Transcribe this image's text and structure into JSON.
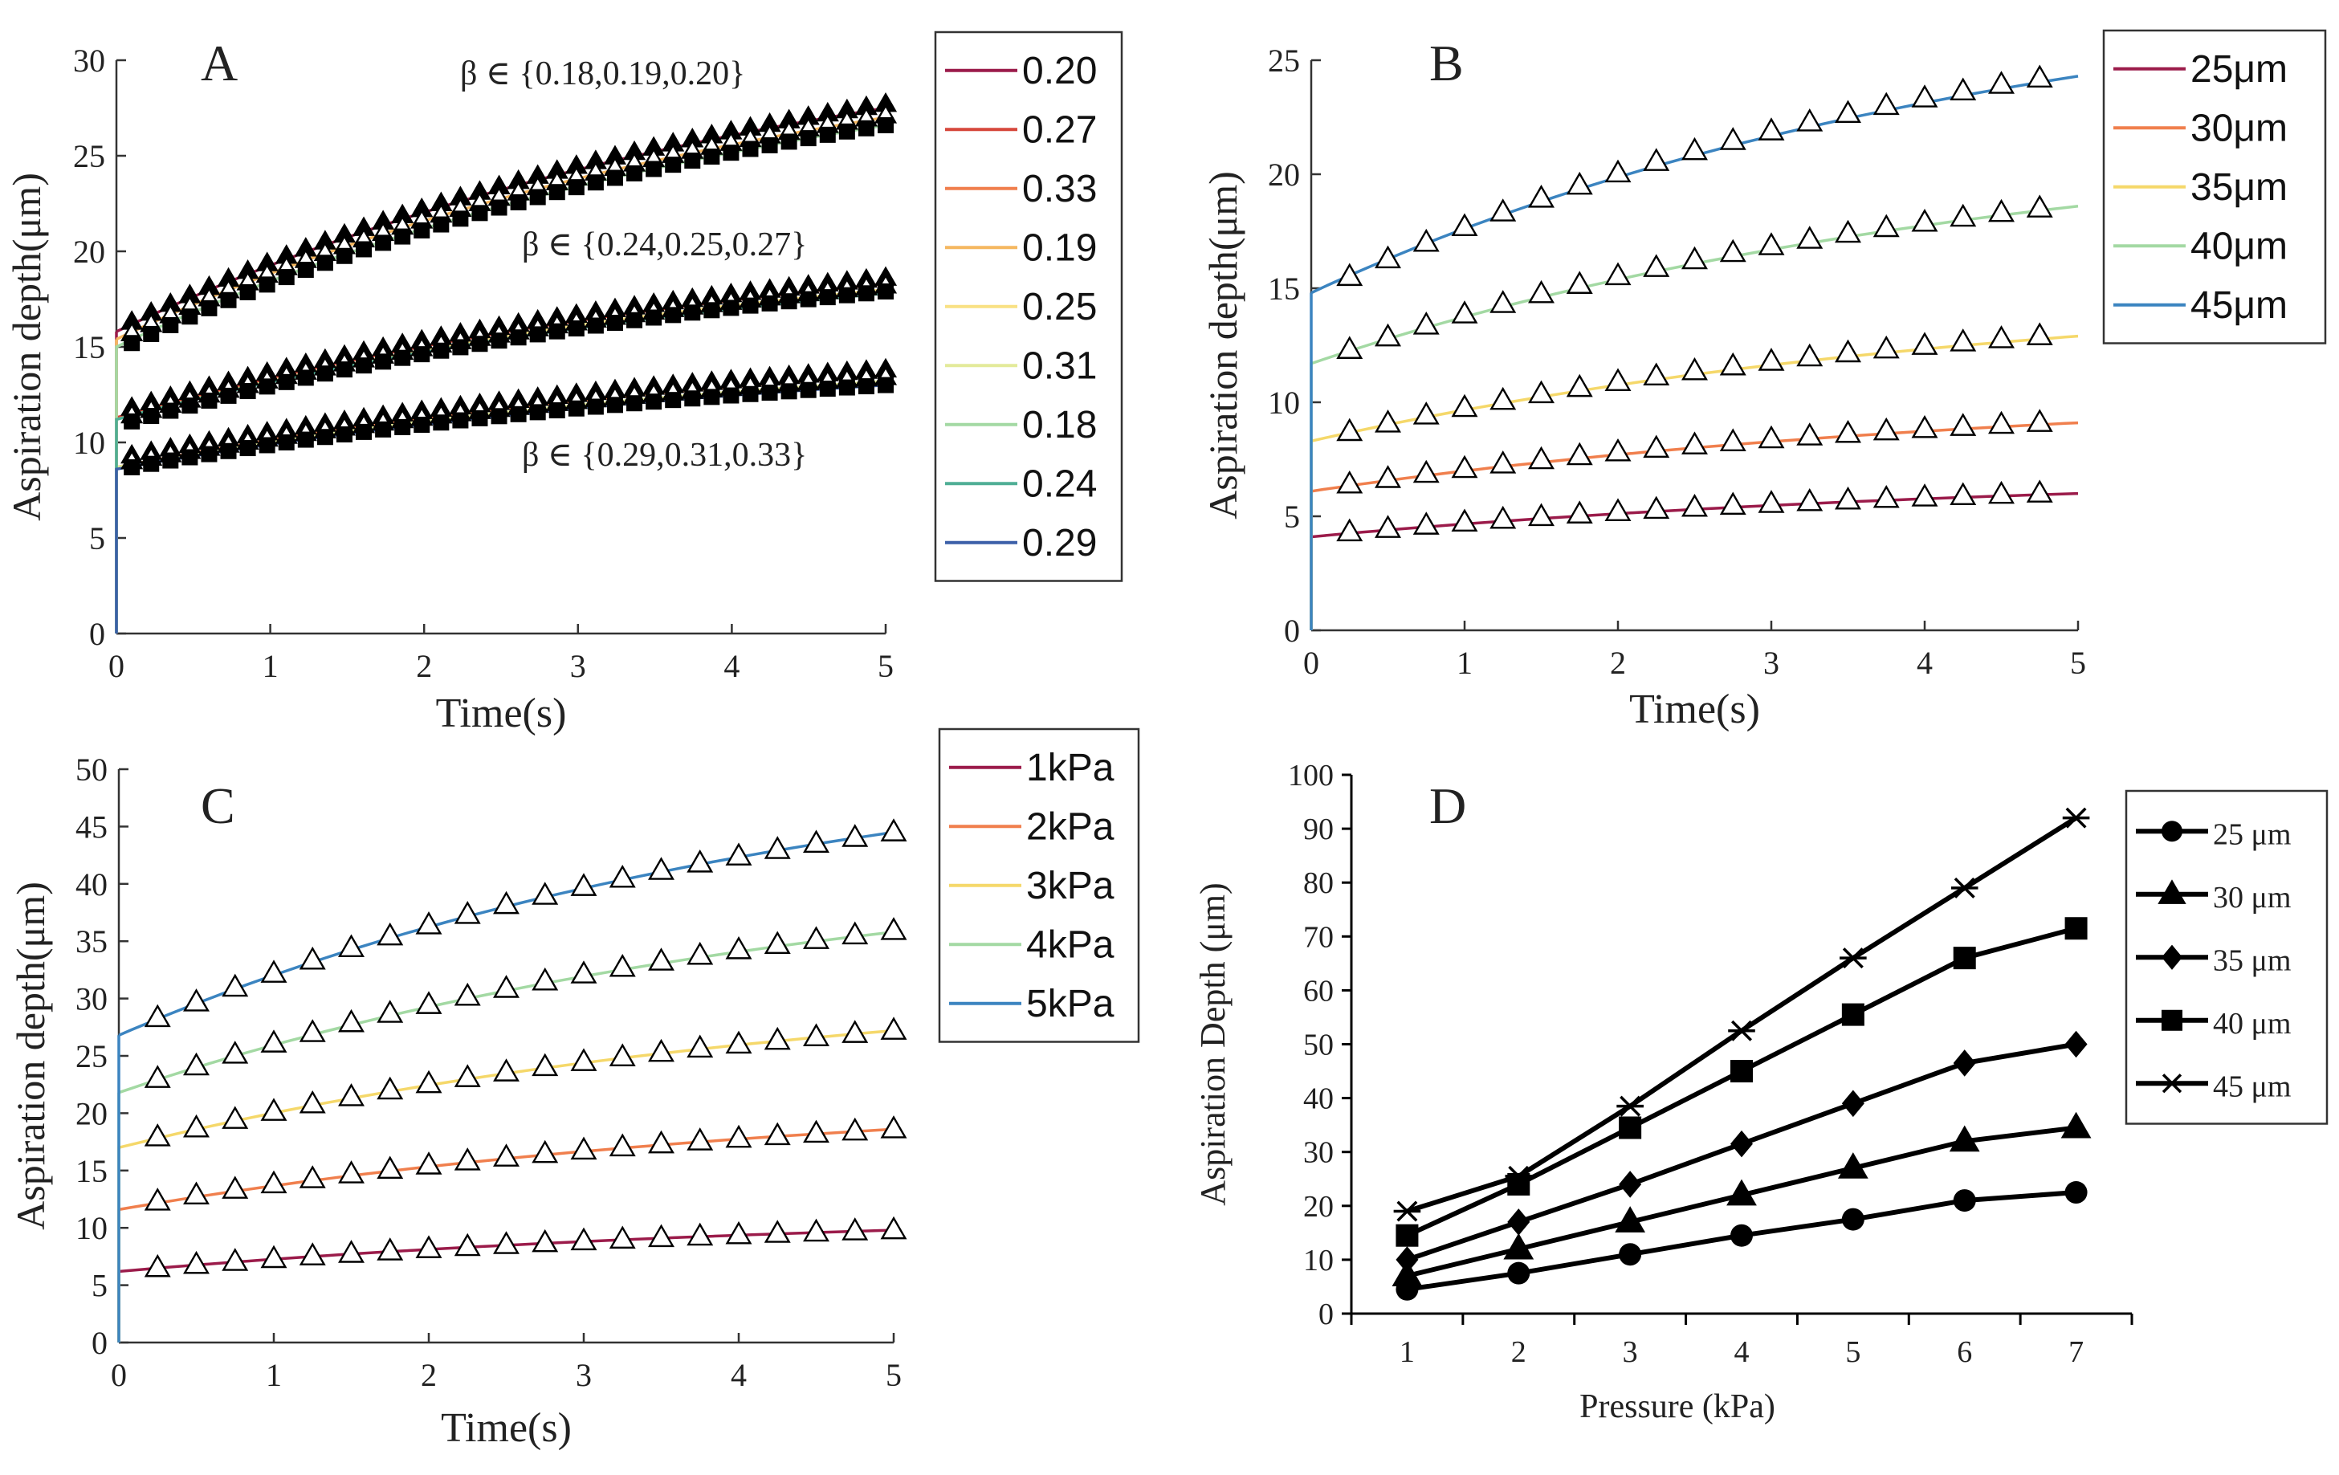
{
  "chart_data": [
    {
      "panel": "A",
      "type": "line",
      "xlabel": "Time(s)",
      "ylabel": "Aspiration depth(μm)",
      "xlim": [
        0,
        5
      ],
      "ylim": [
        0,
        30
      ],
      "xticks": [
        "0",
        "1",
        "2",
        "3",
        "4",
        "5"
      ],
      "yticks": [
        "0",
        "5",
        "10",
        "15",
        "20",
        "25",
        "30"
      ],
      "legend_position": "outside-right",
      "annotations": [
        {
          "text": "β ∈ {0.18,0.19,0.20}",
          "at": [
            3.4,
            28.5
          ]
        },
        {
          "text": "β ∈ {0.24,0.25,0.27}",
          "at": [
            3.9,
            20.0
          ]
        },
        {
          "text": "β ∈ {0.29,0.31,0.33}",
          "at": [
            3.9,
            9.2
          ]
        }
      ],
      "series": [
        {
          "name": "0.20",
          "color": "#9b1b4a",
          "start": 15.8,
          "end": 27.5
        },
        {
          "name": "0.27",
          "color": "#d6473b",
          "start": 11.3,
          "end": 18.3
        },
        {
          "name": "0.33",
          "color": "#f07f4d",
          "start": 8.7,
          "end": 13.5
        },
        {
          "name": "0.19",
          "color": "#f5b760",
          "start": 15.4,
          "end": 27.0
        },
        {
          "name": "0.25",
          "color": "#f9e184",
          "start": 11.2,
          "end": 18.0
        },
        {
          "name": "0.31",
          "color": "#e3ea9a",
          "start": 8.7,
          "end": 13.2
        },
        {
          "name": "0.18",
          "color": "#a3d9a3",
          "start": 15.0,
          "end": 26.6
        },
        {
          "name": "0.24",
          "color": "#4fae95",
          "start": 11.2,
          "end": 17.8
        },
        {
          "name": "0.29",
          "color": "#3b5fa8",
          "start": 8.6,
          "end": 13.0
        }
      ],
      "marker_series": [
        {
          "marker": "filled-triangle",
          "x_start": 0.1,
          "x_end": 5,
          "count": 40,
          "start": 16.3,
          "end": 27.7
        },
        {
          "marker": "open-triangle",
          "x_start": 0.1,
          "x_end": 5,
          "count": 40,
          "start": 15.7,
          "end": 27.1
        },
        {
          "marker": "filled-square",
          "x_start": 0.1,
          "x_end": 5,
          "count": 40,
          "start": 15.2,
          "end": 26.6
        },
        {
          "marker": "filled-triangle",
          "x_start": 0.1,
          "x_end": 5,
          "count": 40,
          "start": 11.8,
          "end": 18.6
        },
        {
          "marker": "open-triangle",
          "x_start": 0.1,
          "x_end": 5,
          "count": 40,
          "start": 11.4,
          "end": 18.2
        },
        {
          "marker": "filled-square",
          "x_start": 0.1,
          "x_end": 5,
          "count": 40,
          "start": 11.1,
          "end": 17.9
        },
        {
          "marker": "filled-triangle",
          "x_start": 0.1,
          "x_end": 5,
          "count": 40,
          "start": 9.3,
          "end": 13.8
        },
        {
          "marker": "open-triangle",
          "x_start": 0.1,
          "x_end": 5,
          "count": 40,
          "start": 9.0,
          "end": 13.4
        },
        {
          "marker": "filled-square",
          "x_start": 0.1,
          "x_end": 5,
          "count": 40,
          "start": 8.7,
          "end": 13.0
        }
      ]
    },
    {
      "panel": "B",
      "type": "line",
      "xlabel": "Time(s)",
      "ylabel": "Aspiration depth(μm)",
      "xlim": [
        0,
        5
      ],
      "ylim": [
        0,
        25
      ],
      "xticks": [
        "0",
        "1",
        "2",
        "3",
        "4",
        "5"
      ],
      "yticks": [
        "0",
        "5",
        "10",
        "15",
        "20",
        "25"
      ],
      "legend_position": "outside-right",
      "series": [
        {
          "name": "25μm",
          "color": "#9b1b4a",
          "start": 4.1,
          "end": 6.0
        },
        {
          "name": "30μm",
          "color": "#f07f4d",
          "start": 6.1,
          "end": 9.1
        },
        {
          "name": "35μm",
          "color": "#f5d86a",
          "start": 8.3,
          "end": 12.9
        },
        {
          "name": "40μm",
          "color": "#a3d9a3",
          "start": 11.7,
          "end": 18.6
        },
        {
          "name": "45μm",
          "color": "#3b84c0",
          "start": 14.8,
          "end": 24.3
        }
      ],
      "marker_series": [
        {
          "marker": "open-triangle",
          "x_start": 0.25,
          "x_end": 4.75,
          "count": 19,
          "start": 4.3,
          "end": 6.0
        },
        {
          "marker": "open-triangle",
          "x_start": 0.25,
          "x_end": 4.75,
          "count": 19,
          "start": 6.4,
          "end": 9.1
        },
        {
          "marker": "open-triangle",
          "x_start": 0.25,
          "x_end": 4.75,
          "count": 19,
          "start": 8.7,
          "end": 12.9
        },
        {
          "marker": "open-triangle",
          "x_start": 0.25,
          "x_end": 4.75,
          "count": 19,
          "start": 12.3,
          "end": 18.5
        },
        {
          "marker": "open-triangle",
          "x_start": 0.25,
          "x_end": 4.75,
          "count": 19,
          "start": 15.5,
          "end": 24.2
        }
      ]
    },
    {
      "panel": "C",
      "type": "line",
      "xlabel": "Time(s)",
      "ylabel": "Aspiration depth(μm)",
      "xlim": [
        0,
        5
      ],
      "ylim": [
        0,
        50
      ],
      "xticks": [
        "0",
        "1",
        "2",
        "3",
        "4",
        "5"
      ],
      "yticks": [
        "0",
        "5",
        "10",
        "15",
        "20",
        "25",
        "30",
        "35",
        "40",
        "45",
        "50"
      ],
      "legend_position": "outside-right",
      "series": [
        {
          "name": "1kPa",
          "color": "#9b1b4a",
          "start": 6.2,
          "end": 9.8
        },
        {
          "name": "2kPa",
          "color": "#f07f4d",
          "start": 11.6,
          "end": 18.6
        },
        {
          "name": "3kPa",
          "color": "#f5d86a",
          "start": 17.0,
          "end": 27.2
        },
        {
          "name": "4kPa",
          "color": "#a3d9a3",
          "start": 21.8,
          "end": 35.8
        },
        {
          "name": "5kPa",
          "color": "#3b84c0",
          "start": 26.8,
          "end": 44.5
        }
      ],
      "marker_series": [
        {
          "marker": "open-triangle",
          "x_start": 0.25,
          "x_end": 5,
          "count": 20,
          "start": 6.5,
          "end": 9.8
        },
        {
          "marker": "open-triangle",
          "x_start": 0.25,
          "x_end": 5,
          "count": 20,
          "start": 12.3,
          "end": 18.6
        },
        {
          "marker": "open-triangle",
          "x_start": 0.25,
          "x_end": 5,
          "count": 20,
          "start": 17.9,
          "end": 27.2
        },
        {
          "marker": "open-triangle",
          "x_start": 0.25,
          "x_end": 5,
          "count": 20,
          "start": 23.0,
          "end": 35.9
        },
        {
          "marker": "open-triangle",
          "x_start": 0.25,
          "x_end": 5,
          "count": 20,
          "start": 28.3,
          "end": 44.5
        }
      ]
    },
    {
      "panel": "D",
      "type": "line",
      "xlabel": "Pressure (kPa)",
      "ylabel": "Aspiration Depth (μm)",
      "ylim": [
        0,
        100
      ],
      "categories": [
        "1",
        "2",
        "3",
        "4",
        "5",
        "6",
        "7"
      ],
      "yticks": [
        "0",
        "10",
        "20",
        "30",
        "40",
        "50",
        "60",
        "70",
        "80",
        "90",
        "100"
      ],
      "legend_position": "outside-right",
      "series": [
        {
          "name": "25 μm",
          "marker": "circle",
          "values": [
            4.5,
            7.5,
            11,
            14.5,
            17.5,
            21,
            22.5
          ]
        },
        {
          "name": "30 μm",
          "marker": "triangle",
          "values": [
            7,
            12,
            17,
            22,
            27,
            32,
            34.5
          ]
        },
        {
          "name": "35 μm",
          "marker": "diamond",
          "values": [
            10,
            17,
            24,
            31.5,
            39,
            46.5,
            50
          ]
        },
        {
          "name": "40 μm",
          "marker": "square",
          "values": [
            14.5,
            24,
            34.5,
            45,
            55.5,
            66,
            71.5
          ]
        },
        {
          "name": "45 μm",
          "marker": "asterisk",
          "values": [
            19,
            25.5,
            38.5,
            52.5,
            66,
            79,
            92
          ]
        }
      ]
    }
  ]
}
